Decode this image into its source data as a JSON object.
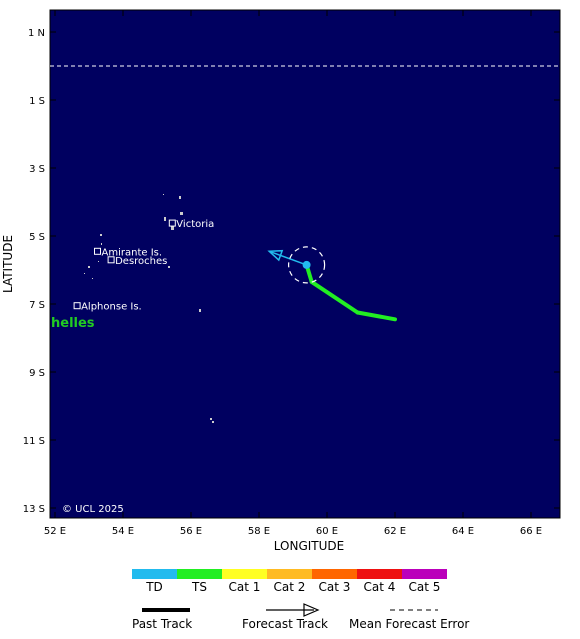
{
  "map": {
    "ocean_color": "#000060",
    "longitude_range": [
      52,
      67
    ],
    "latitude_range": [
      1.7,
      -13.2
    ],
    "xlabel": "LONGITUDE",
    "ylabel": "LATITUDE",
    "equator_line": "dashed",
    "copyright": "© UCL 2025",
    "storm_name_fragment": "helles",
    "storm_name_color": "#22cc22"
  },
  "x_ticks": [
    {
      "value": 52,
      "label": "52 E"
    },
    {
      "value": 54,
      "label": "54 E"
    },
    {
      "value": 56,
      "label": "56 E"
    },
    {
      "value": 58,
      "label": "58 E"
    },
    {
      "value": 60,
      "label": "60 E"
    },
    {
      "value": 62,
      "label": "62 E"
    },
    {
      "value": 64,
      "label": "64 E"
    },
    {
      "value": 66,
      "label": "66 E"
    }
  ],
  "y_ticks": [
    {
      "value": 1,
      "label": "1 N"
    },
    {
      "value": -1,
      "label": "1 S"
    },
    {
      "value": -3,
      "label": "3 S"
    },
    {
      "value": -5,
      "label": "5 S"
    },
    {
      "value": -7,
      "label": "7 S"
    },
    {
      "value": -9,
      "label": "9 S"
    },
    {
      "value": -11,
      "label": "11 S"
    },
    {
      "value": -13,
      "label": "13 S"
    }
  ],
  "places": [
    {
      "name": "Victoria",
      "lon": 55.45,
      "lat": -4.62
    },
    {
      "name": "Amirante Is.",
      "lon": 53.25,
      "lat": -5.45
    },
    {
      "name": "Desroches",
      "lon": 53.65,
      "lat": -5.7
    },
    {
      "name": "Alphonse Is.",
      "lon": 52.65,
      "lat": -7.05
    }
  ],
  "past_track": [
    {
      "lon": 62.0,
      "lat": -7.45,
      "category": "TS"
    },
    {
      "lon": 60.9,
      "lat": -7.25,
      "category": "TS"
    },
    {
      "lon": 59.55,
      "lat": -6.35,
      "category": "TS"
    },
    {
      "lon": 59.4,
      "lat": -5.85,
      "category": "TD"
    }
  ],
  "forecast_track": [
    {
      "lon": 59.4,
      "lat": -5.85
    },
    {
      "lon": 58.3,
      "lat": -5.45
    }
  ],
  "current_position": {
    "lon": 59.4,
    "lat": -5.85,
    "category": "TD"
  },
  "forecast_category": "TD",
  "legend": {
    "categories": [
      {
        "label": "TD",
        "color": "#22bbee"
      },
      {
        "label": "TS",
        "color": "#22ee22"
      },
      {
        "label": "Cat 1",
        "color": "#ffff22"
      },
      {
        "label": "Cat 2",
        "color": "#ffbb22"
      },
      {
        "label": "Cat 3",
        "color": "#ff6600"
      },
      {
        "label": "Cat 4",
        "color": "#ee1111"
      },
      {
        "label": "Cat 5",
        "color": "#bb00bb"
      }
    ],
    "track_types": {
      "past": "Past Track",
      "forecast": "Forecast Track",
      "error": "Mean Forecast Error"
    }
  }
}
